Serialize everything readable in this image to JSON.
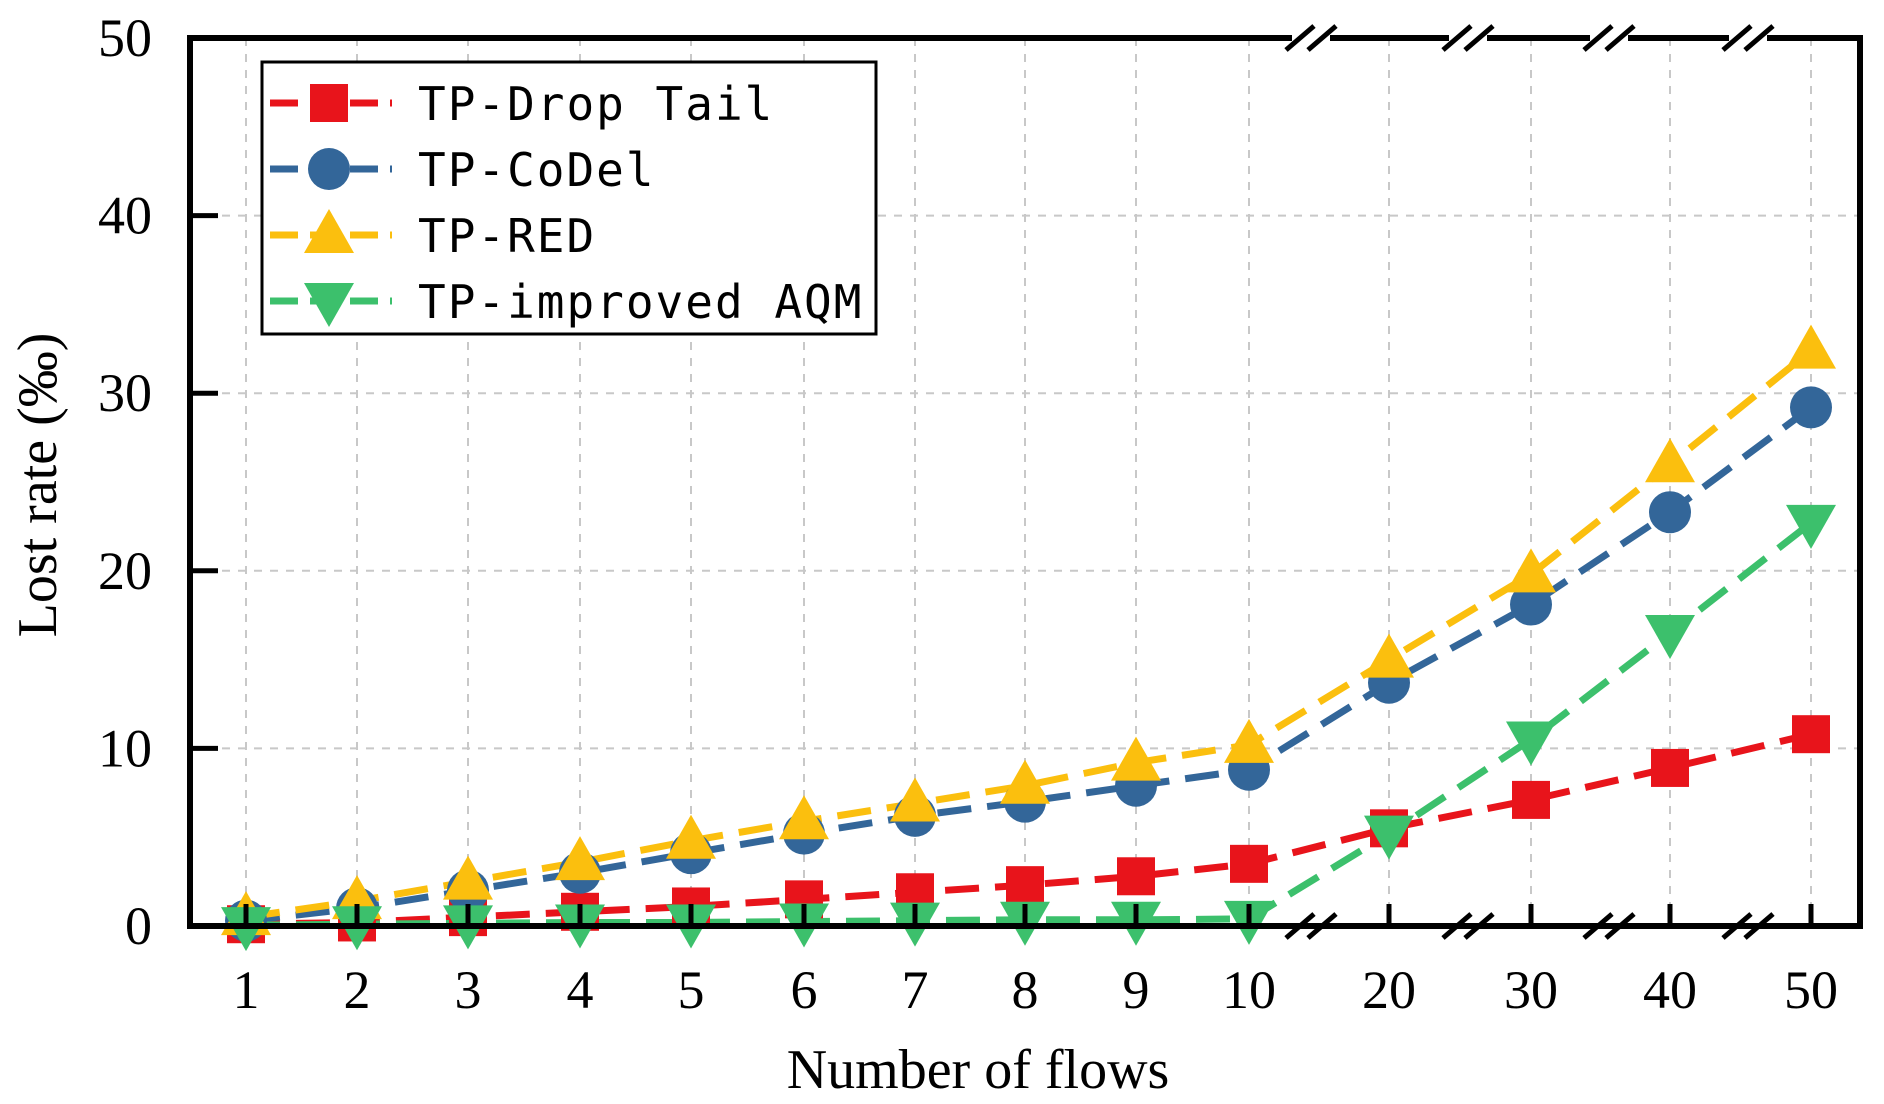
{
  "chart_data": {
    "type": "line",
    "xlabel": "Number of flows",
    "ylabel": "Lost rate (‰)",
    "categories": [
      "1",
      "2",
      "3",
      "4",
      "5",
      "6",
      "7",
      "8",
      "9",
      "10",
      "20",
      "30",
      "40",
      "50"
    ],
    "axis_break": "broken x-axis after 10 and between 20, 30, 40, 50",
    "yticks": [
      "0",
      "10",
      "20",
      "30",
      "40",
      "50"
    ],
    "ylim": [
      0,
      50
    ],
    "grid": true,
    "legend_position": "top-left",
    "series": [
      {
        "name": "TP-Drop Tail",
        "color": "#e8141b",
        "marker": "square",
        "values": [
          0.1,
          0.2,
          0.5,
          0.8,
          1.1,
          1.5,
          1.9,
          2.3,
          2.8,
          3.5,
          5.5,
          7.1,
          8.9,
          10.8
        ]
      },
      {
        "name": "TP-CoDel",
        "color": "#336699",
        "marker": "circle",
        "values": [
          0.3,
          1.0,
          2.0,
          3.0,
          4.1,
          5.2,
          6.2,
          7.0,
          7.9,
          8.8,
          13.7,
          18.1,
          23.3,
          29.2
        ]
      },
      {
        "name": "TP-RED",
        "color": "#fbbf0e",
        "marker": "triangle-up",
        "values": [
          0.5,
          1.4,
          2.5,
          3.6,
          4.8,
          5.9,
          6.9,
          7.9,
          9.2,
          10.2,
          15.0,
          19.8,
          26.0,
          32.4
        ]
      },
      {
        "name": "TP-improved AQM",
        "color": "#3cc06c",
        "marker": "triangle-down",
        "values": [
          0.05,
          0.1,
          0.15,
          0.2,
          0.2,
          0.25,
          0.3,
          0.35,
          0.35,
          0.4,
          5.2,
          10.5,
          16.5,
          22.7
        ]
      }
    ]
  }
}
